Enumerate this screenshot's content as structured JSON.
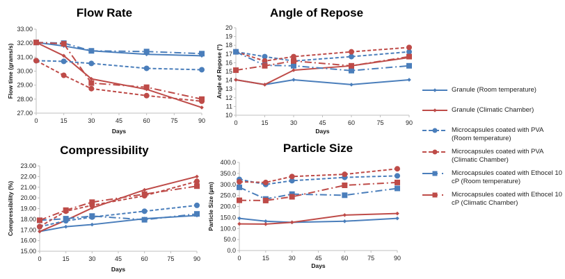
{
  "colors": {
    "blue": "#4a7ebb",
    "red": "#be4b48"
  },
  "legend": [
    {
      "label": "Granule (Room temperature)",
      "color": "blue",
      "dash": "solid",
      "marker": "diamond"
    },
    {
      "label": "Granule (Climatic Chamber)",
      "color": "red",
      "dash": "solid",
      "marker": "diamond"
    },
    {
      "label": "Microcapsules coated with PVA (Room temperature)",
      "color": "blue",
      "dash": "dash",
      "marker": "circle"
    },
    {
      "label": "Microcapsules coated with PVA (Climatic Chamber)",
      "color": "red",
      "dash": "dash",
      "marker": "circle"
    },
    {
      "label": "Microcapsules coated with Ethocel 10 cP (Room temperature)",
      "color": "blue",
      "dash": "dashdot",
      "marker": "square"
    },
    {
      "label": "Microcapsules coated with Ethocel 10 cP (Climatic Chamber)",
      "color": "red",
      "dash": "dashdot",
      "marker": "square"
    }
  ],
  "chart_data": [
    {
      "type": "line",
      "title": "Flow Rate",
      "xlabel": "Days",
      "ylabel": "Flow time (grams/s)",
      "x": [
        0,
        15,
        30,
        60,
        90
      ],
      "xticks": [
        0,
        15,
        30,
        45,
        60,
        75,
        90
      ],
      "ylim": [
        27,
        33
      ],
      "yticks": [
        "27.00",
        "28.00",
        "29.00",
        "30.00",
        "31.00",
        "32.00",
        "33.00"
      ],
      "series": [
        {
          "name": "Granule (Room temperature)",
          "values": [
            32.05,
            31.8,
            31.45,
            31.2,
            31.1
          ]
        },
        {
          "name": "Granule (Climatic Chamber)",
          "values": [
            32.05,
            31.1,
            29.45,
            28.7,
            27.4
          ]
        },
        {
          "name": "Microcapsules coated with PVA (Room temperature)",
          "values": [
            30.75,
            30.7,
            30.55,
            30.2,
            30.1
          ]
        },
        {
          "name": "Microcapsules coated with PVA (Climatic Chamber)",
          "values": [
            30.75,
            29.7,
            28.75,
            28.25,
            27.85
          ]
        },
        {
          "name": "Microcapsules coated with Ethocel 10 cP (Room temperature)",
          "values": [
            32.05,
            32.0,
            31.45,
            31.4,
            31.25
          ]
        },
        {
          "name": "Microcapsules coated with Ethocel 10 cP (Climatic Chamber)",
          "values": [
            32.05,
            31.95,
            29.15,
            28.85,
            28.0
          ]
        }
      ]
    },
    {
      "type": "line",
      "title": "Angle of Repose",
      "xlabel": "Days",
      "ylabel": "Angle of Repose (°)",
      "x": [
        0,
        15,
        30,
        60,
        90
      ],
      "xticks": [
        0,
        15,
        30,
        45,
        60,
        75,
        90
      ],
      "ylim": [
        10,
        20
      ],
      "yticks": [
        "10",
        "11",
        "12",
        "13",
        "14",
        "15",
        "16",
        "17",
        "18",
        "19",
        "20"
      ],
      "series": [
        {
          "name": "Granule (Room temperature)",
          "values": [
            14.05,
            13.5,
            14.05,
            13.5,
            14.05
          ]
        },
        {
          "name": "Granule (Climatic Chamber)",
          "values": [
            14.05,
            13.5,
            15.15,
            15.65,
            16.6
          ]
        },
        {
          "name": "Microcapsules coated with PVA (Room temperature)",
          "values": [
            17.25,
            16.7,
            16.2,
            16.7,
            17.25
          ]
        },
        {
          "name": "Microcapsules coated with PVA (Climatic Chamber)",
          "values": [
            17.25,
            16.2,
            16.7,
            17.25,
            17.75
          ]
        },
        {
          "name": "Microcapsules coated with Ethocel 10 cP (Room temperature)",
          "values": [
            17.25,
            15.7,
            15.65,
            15.1,
            15.65
          ]
        },
        {
          "name": "Microcapsules coated with Ethocel 10 cP (Climatic Chamber)",
          "values": [
            15.15,
            15.65,
            16.2,
            15.65,
            16.7
          ]
        }
      ]
    },
    {
      "type": "line",
      "title": "Compressibility",
      "xlabel": "Days",
      "ylabel": "Compressibility (%)",
      "x": [
        0,
        15,
        30,
        60,
        90
      ],
      "xticks": [
        0,
        15,
        30,
        45,
        60,
        75,
        90
      ],
      "ylim": [
        15,
        23
      ],
      "yticks": [
        "15.00",
        "16.00",
        "17.00",
        "18.00",
        "19.00",
        "20.00",
        "21.00",
        "22.00",
        "23.00"
      ],
      "series": [
        {
          "name": "Granule (Room temperature)",
          "values": [
            16.85,
            17.3,
            17.5,
            18.05,
            18.35
          ]
        },
        {
          "name": "Granule (Climatic Chamber)",
          "values": [
            16.85,
            17.9,
            19.05,
            20.75,
            22.0
          ]
        },
        {
          "name": "Microcapsules coated with PVA (Room temperature)",
          "values": [
            17.3,
            17.85,
            18.2,
            18.75,
            19.3
          ]
        },
        {
          "name": "Microcapsules coated with PVA (Climatic Chamber)",
          "values": [
            17.3,
            18.75,
            19.3,
            20.2,
            21.55
          ]
        },
        {
          "name": "Microcapsules coated with Ethocel 10 cP (Room temperature)",
          "values": [
            17.9,
            18.05,
            18.3,
            17.95,
            18.5
          ]
        },
        {
          "name": "Microcapsules coated with Ethocel 10 cP (Climatic Chamber)",
          "values": [
            17.9,
            18.85,
            19.6,
            20.35,
            21.1
          ]
        }
      ]
    },
    {
      "type": "line",
      "title": "Particle Size",
      "xlabel": "Days",
      "ylabel": "Particle Size (µm)",
      "x": [
        0,
        15,
        30,
        60,
        90
      ],
      "xticks": [
        0,
        15,
        30,
        45,
        60,
        75,
        90
      ],
      "ylim": [
        0,
        400
      ],
      "yticks": [
        "0.0",
        "50.0",
        "100.0",
        "150.0",
        "200.0",
        "250.0",
        "300.0",
        "350.0",
        "400.0"
      ],
      "series": [
        {
          "name": "Granule (Room temperature)",
          "values": [
            146,
            133,
            128,
            133,
            146
          ]
        },
        {
          "name": "Granule (Climatic Chamber)",
          "values": [
            121,
            120,
            128,
            161,
            168
          ]
        },
        {
          "name": "Microcapsules coated with PVA (Room temperature)",
          "values": [
            323,
            300,
            317,
            332,
            339
          ]
        },
        {
          "name": "Microcapsules coated with PVA (Climatic Chamber)",
          "values": [
            312,
            309,
            336,
            346,
            371
          ]
        },
        {
          "name": "Microcapsules coated with Ethocel 10 cP (Room temperature)",
          "values": [
            287,
            234,
            256,
            251,
            282
          ]
        },
        {
          "name": "Microcapsules coated with Ethocel 10 cP (Climatic Chamber)",
          "values": [
            228,
            227,
            244,
            296,
            309
          ]
        }
      ]
    }
  ]
}
